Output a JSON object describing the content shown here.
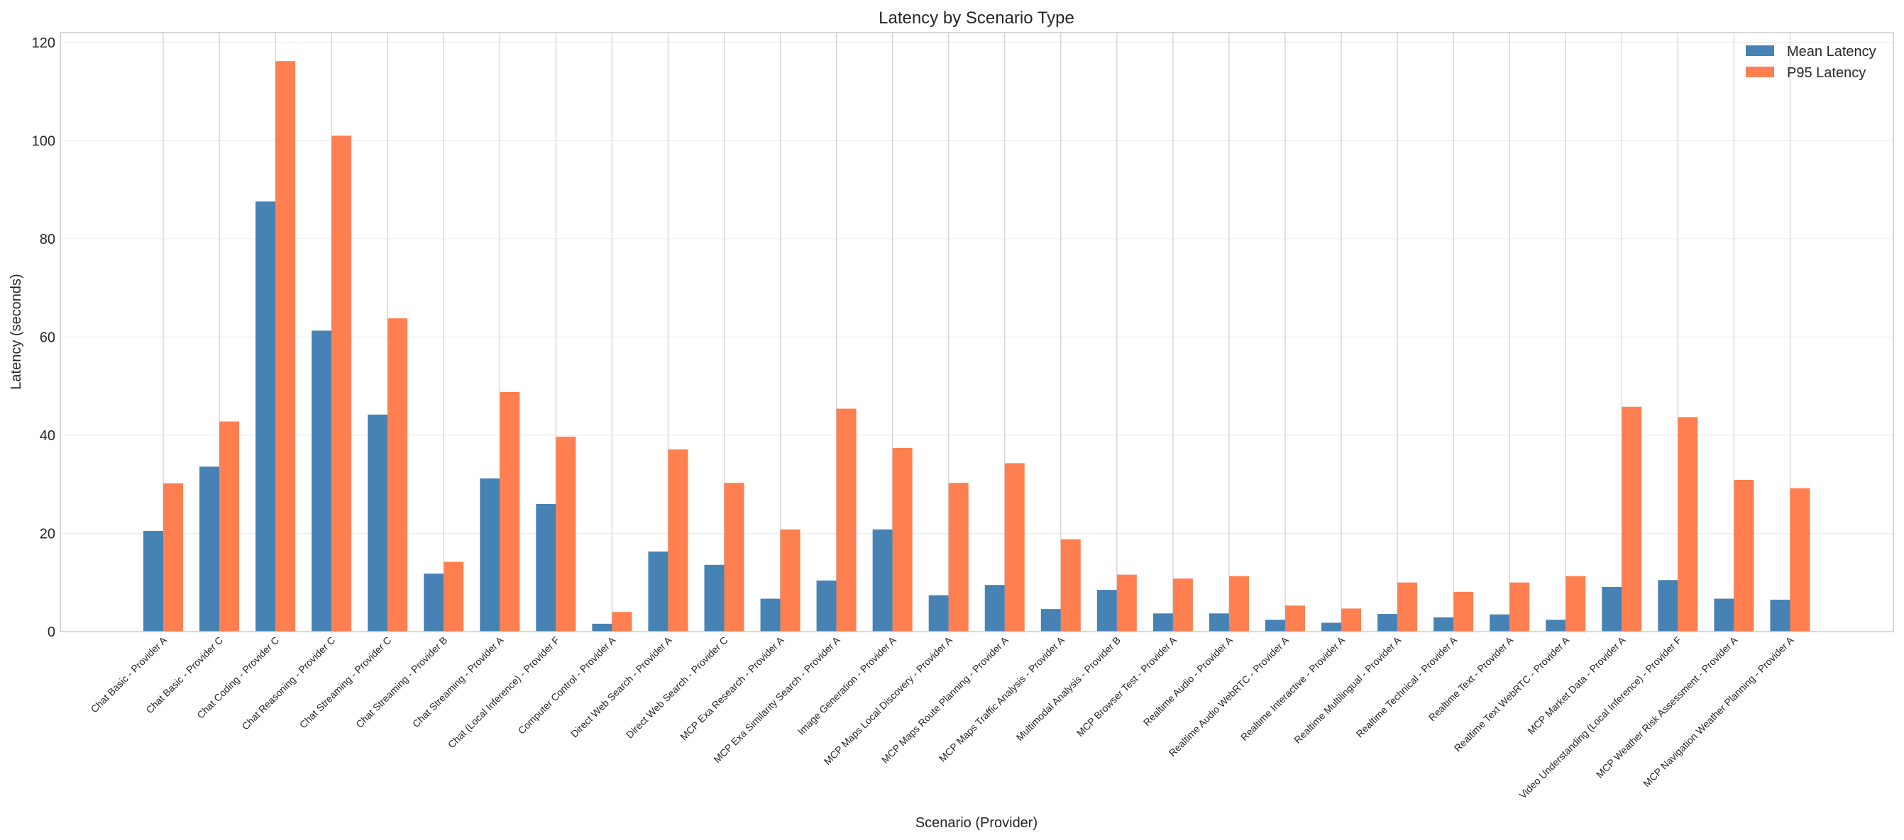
{
  "chart_data": {
    "type": "bar",
    "title": "Latency by Scenario Type",
    "xlabel": "Scenario (Provider)",
    "ylabel": "Latency (seconds)",
    "ylim": [
      0,
      122
    ],
    "yticks": [
      0,
      20,
      40,
      60,
      80,
      100,
      120
    ],
    "grid": true,
    "legend_position": "top-right",
    "categories": [
      "Chat Basic - Provider A",
      "Chat Basic - Provider C",
      "Chat Coding - Provider C",
      "Chat Reasoning - Provider C",
      "Chat Streaming - Provider C",
      "Chat Streaming - Provider B",
      "Chat Streaming - Provider A",
      "Chat (Local Inference) - Provider F",
      "Computer Control - Provider A",
      "Direct Web Search - Provider A",
      "Direct Web Search - Provider C",
      "MCP Exa Research - Provider A",
      "MCP Exa Similarity Search - Provider A",
      "Image Generation - Provider A",
      "MCP Maps Local Discovery - Provider A",
      "MCP Maps Route Planning - Provider A",
      "MCP Maps Traffic Analysis - Provider A",
      "Multimodal Analysis - Provider B",
      "MCP Browser Test - Provider A",
      "Realtime Audio - Provider A",
      "Realtime Audio WebRTC - Provider A",
      "Realtime Interactive - Provider A",
      "Realtime Multilingual - Provider A",
      "Realtime Technical - Provider A",
      "Realtime Text - Provider A",
      "Realtime Text WebRTC - Provider A",
      "MCP Market Data - Provider A",
      "Video Understanding (Local Inference) - Provider F",
      "MCP Weather Risk Assessment - Provider A",
      "MCP Navigation Weather Planning - Provider A"
    ],
    "series": [
      {
        "name": "Mean Latency",
        "color": "#4682b4",
        "values": [
          20.5,
          33.6,
          87.6,
          61.3,
          44.2,
          11.8,
          31.2,
          26.0,
          1.6,
          16.3,
          13.6,
          6.7,
          10.4,
          20.8,
          7.4,
          9.5,
          4.6,
          8.5,
          3.7,
          3.7,
          2.4,
          1.8,
          3.6,
          2.9,
          3.5,
          2.4,
          9.1,
          10.5,
          6.7,
          6.5
        ]
      },
      {
        "name": "P95 Latency",
        "color": "#ff7f50",
        "values": [
          30.2,
          42.8,
          116.2,
          101.0,
          63.8,
          14.2,
          48.8,
          39.7,
          4.0,
          37.1,
          30.3,
          20.8,
          45.4,
          37.4,
          30.3,
          34.3,
          18.8,
          11.6,
          10.8,
          11.3,
          5.3,
          4.7,
          10.0,
          8.1,
          10.0,
          11.3,
          45.8,
          43.7,
          30.9,
          29.2
        ]
      }
    ]
  }
}
